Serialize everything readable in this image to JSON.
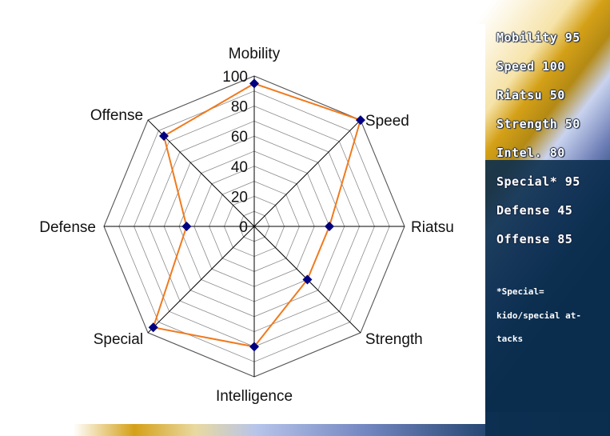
{
  "chart_data": {
    "type": "radar",
    "categories": [
      "Mobility",
      "Speed",
      "Riatsu",
      "Strength",
      "Intelligence",
      "Special",
      "Defense",
      "Offense"
    ],
    "series": [
      {
        "values": [
          95,
          100,
          50,
          50,
          80,
          95,
          45,
          85
        ],
        "color": "#f07a1e",
        "marker_color": "#000080"
      }
    ],
    "rlim": [
      0,
      100
    ],
    "ticks": [
      "0",
      "20",
      "40",
      "60",
      "80",
      "100"
    ],
    "grid": true
  },
  "stats": [
    "Mobility 95",
    "Speed 100",
    "Riatsu 50",
    "Strength 50",
    "Intel. 80",
    "Special* 95",
    "Defense 45",
    "Offense 85"
  ],
  "note_lines": [
    "*Special=",
    "kido/special at-",
    "tacks"
  ],
  "colors": {
    "gold": "#d4a017",
    "navy": "#0b2d4e",
    "panel": "#ffffff",
    "grid": "#8c8c8c",
    "axis": "#000000"
  }
}
